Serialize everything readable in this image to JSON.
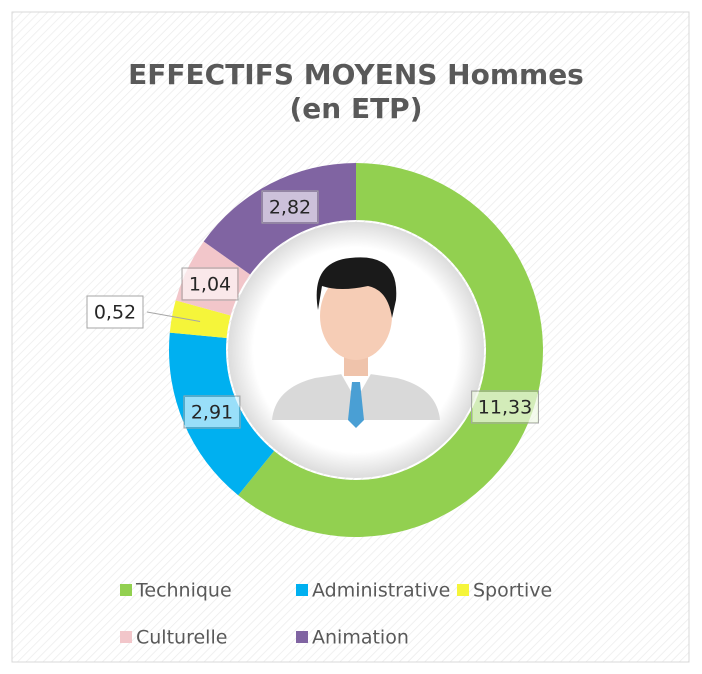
{
  "chart_data": {
    "type": "donut",
    "title": "EFFECTIFS MOYENS Hommes (en ETP)",
    "categories": [
      "Technique",
      "Administrative",
      "Sportive",
      "Culturelle",
      "Animation"
    ],
    "values": [
      11.33,
      2.91,
      0.52,
      1.04,
      2.82
    ],
    "value_labels": [
      "11,33",
      "2,91",
      "0,52",
      "1,04",
      "2,82"
    ],
    "colors": [
      "#92d050",
      "#00b0f0",
      "#f5f53a",
      "#f2c6ca",
      "#8064a2"
    ],
    "legend": "bottom"
  }
}
